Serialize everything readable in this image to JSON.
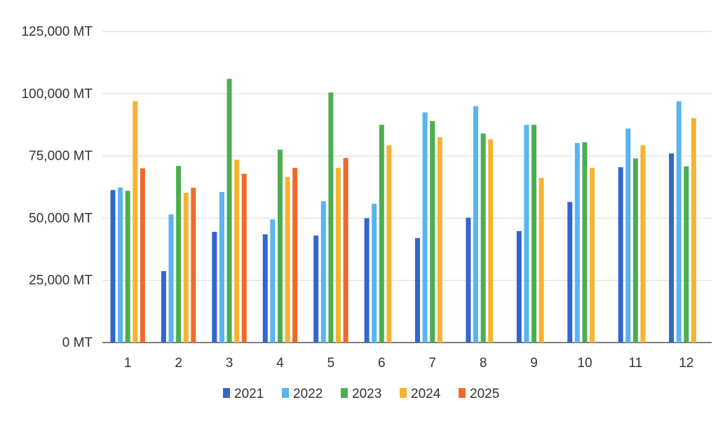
{
  "chart_data": {
    "type": "bar",
    "categories": [
      "1",
      "2",
      "3",
      "4",
      "5",
      "6",
      "7",
      "8",
      "9",
      "10",
      "11",
      "12"
    ],
    "series": [
      {
        "name": "2021",
        "color": "#3366cc",
        "values": [
          61300,
          28700,
          44500,
          43500,
          43000,
          50000,
          42000,
          50200,
          44800,
          56500,
          70500,
          76000
        ]
      },
      {
        "name": "2022",
        "color": "#5ab4f0",
        "values": [
          62300,
          51500,
          60500,
          49500,
          56800,
          55800,
          92500,
          95000,
          87500,
          80200,
          86000,
          97000
        ]
      },
      {
        "name": "2023",
        "color": "#4cae50",
        "values": [
          61000,
          71000,
          106000,
          77500,
          100500,
          87500,
          89000,
          84000,
          87500,
          80500,
          74000,
          70800
        ]
      },
      {
        "name": "2024",
        "color": "#f6b332",
        "values": [
          97000,
          60200,
          73500,
          66500,
          70200,
          79300,
          82500,
          81700,
          66200,
          70200,
          79300,
          90200
        ]
      },
      {
        "name": "2025",
        "color": "#ef6a2a",
        "values": [
          70000,
          62200,
          67800,
          70200,
          74200,
          null,
          null,
          null,
          null,
          null,
          null,
          null
        ]
      }
    ],
    "y_ticks": [
      "0 MT",
      "25,000 MT",
      "50,000 MT",
      "75,000 MT",
      "100,000 MT",
      "125,000 MT"
    ],
    "y_tick_values": [
      0,
      25000,
      50000,
      75000,
      100000,
      125000
    ],
    "ylim": [
      0,
      125000
    ],
    "title": "",
    "xlabel": "",
    "ylabel": "",
    "grid": true,
    "legend_position": "bottom"
  }
}
